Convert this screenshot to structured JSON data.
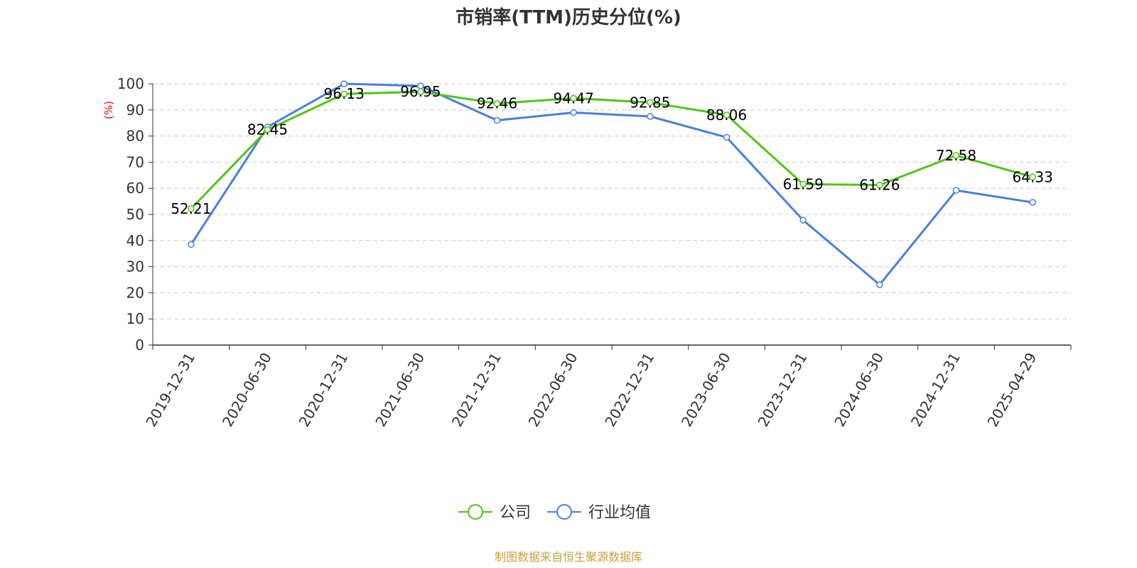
{
  "chart_data": {
    "type": "line",
    "title": "市销率(TTM)历史分位(%)",
    "ylabel": "(%)",
    "ylim": [
      0,
      100
    ],
    "yticks": [
      0,
      10,
      20,
      30,
      40,
      50,
      60,
      70,
      80,
      90,
      100
    ],
    "grid": true,
    "legend_position": "bottom-center",
    "categories": [
      "2019-12-31",
      "2020-06-30",
      "2020-12-31",
      "2021-06-30",
      "2021-12-31",
      "2022-06-30",
      "2022-12-31",
      "2023-06-30",
      "2023-12-31",
      "2024-06-30",
      "2024-12-31",
      "2025-04-29"
    ],
    "series": [
      {
        "name": "公司",
        "color": "#52c41a",
        "values": [
          52.21,
          82.45,
          96.13,
          96.95,
          92.46,
          94.47,
          92.85,
          88.06,
          61.59,
          61.26,
          72.58,
          64.33
        ],
        "labels": [
          "52.21",
          "82.45",
          "96.13",
          "96.95",
          "92.46",
          "94.47",
          "92.85",
          "88.06",
          "61.59",
          "61.26",
          "72.58",
          "64.33"
        ]
      },
      {
        "name": "行业均值",
        "color": "#4a7fde",
        "values": [
          38.5,
          83.5,
          100.0,
          99.2,
          86.0,
          89.0,
          87.5,
          79.5,
          47.8,
          23.1,
          59.2,
          54.6
        ]
      }
    ]
  },
  "source_text": "制图数据来自恒生聚源数据库"
}
